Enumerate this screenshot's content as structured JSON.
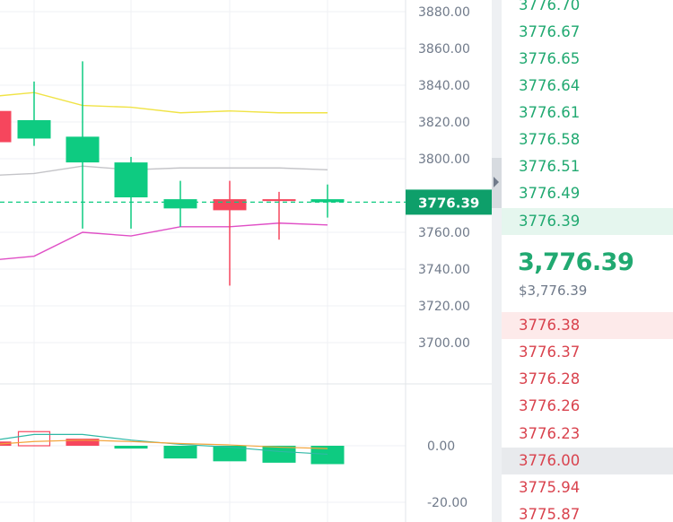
{
  "colors": {
    "up": "#0ecb81",
    "down": "#f6465d",
    "ma_yellow": "#f0e346",
    "ma_gray": "#c4c4c8",
    "ma_pink": "#e04fc6",
    "macd_line": "#2fb8a6",
    "signal_line": "#f3a43b",
    "grid": "#eff1f4"
  },
  "chart_data": {
    "type": "candlestick",
    "price_axis": {
      "ticks": [
        "3880.00",
        "3860.00",
        "3840.00",
        "3820.00",
        "3800.00",
        "3760.00",
        "3740.00",
        "3720.00",
        "3700.00"
      ],
      "range": [
        3690,
        3886
      ]
    },
    "last_price_label": "3776.39",
    "last_price": 3776.39,
    "candles": [
      {
        "open": 3809,
        "close": 3826,
        "high": 3826,
        "low": 3802,
        "direction": "down",
        "partial": true
      },
      {
        "open": 3811,
        "close": 3821,
        "high": 3842,
        "low": 3807,
        "direction": "up"
      },
      {
        "open": 3798,
        "close": 3812,
        "high": 3853,
        "low": 3762,
        "direction": "up"
      },
      {
        "open": 3779,
        "close": 3798,
        "high": 3801,
        "low": 3762,
        "direction": "up"
      },
      {
        "open": 3773,
        "close": 3778,
        "high": 3788,
        "low": 3763,
        "direction": "up"
      },
      {
        "open": 3778,
        "close": 3772,
        "high": 3788,
        "low": 3731,
        "direction": "down"
      },
      {
        "open": 3778,
        "close": 3777,
        "high": 3782,
        "low": 3756,
        "direction": "down"
      },
      {
        "open": 3778,
        "close": 3776.39,
        "high": 3786,
        "low": 3768,
        "direction": "up"
      }
    ],
    "moving_averages": [
      {
        "color_key": "ma_yellow",
        "values": [
          3834,
          3836,
          3829,
          3828,
          3825,
          3826,
          3825,
          3825
        ]
      },
      {
        "color_key": "ma_gray",
        "values": [
          3791,
          3792,
          3796,
          3794,
          3795,
          3795,
          3795,
          3794
        ]
      },
      {
        "color_key": "ma_pink",
        "values": [
          3745,
          3747,
          3760,
          3758,
          3763,
          3763,
          3765,
          3764
        ]
      }
    ],
    "indicator_axis": {
      "ticks": [
        "0.00",
        "-20.00"
      ],
      "range": [
        -24,
        6
      ]
    },
    "histogram": [
      1.5,
      5,
      2.5,
      -1,
      -4.5,
      -5.5,
      -6,
      -6.5
    ],
    "macd_line": [
      2,
      4,
      4,
      2,
      0.5,
      -0.5,
      -2,
      -3
    ],
    "signal_line": [
      0.5,
      1.5,
      2,
      1.5,
      0.8,
      0.3,
      -0.5,
      -1
    ]
  },
  "orderbook": {
    "asks": [
      "3776.70",
      "3776.67",
      "3776.65",
      "3776.64",
      "3776.61",
      "3776.58",
      "3776.51",
      "3776.49",
      "3776.39"
    ],
    "mid_price": "3,776.39",
    "mid_price_usd": "$3,776.39",
    "bids": [
      "3776.38",
      "3776.37",
      "3776.28",
      "3776.26",
      "3776.23",
      "3776.00",
      "3775.94",
      "3775.87"
    ]
  }
}
